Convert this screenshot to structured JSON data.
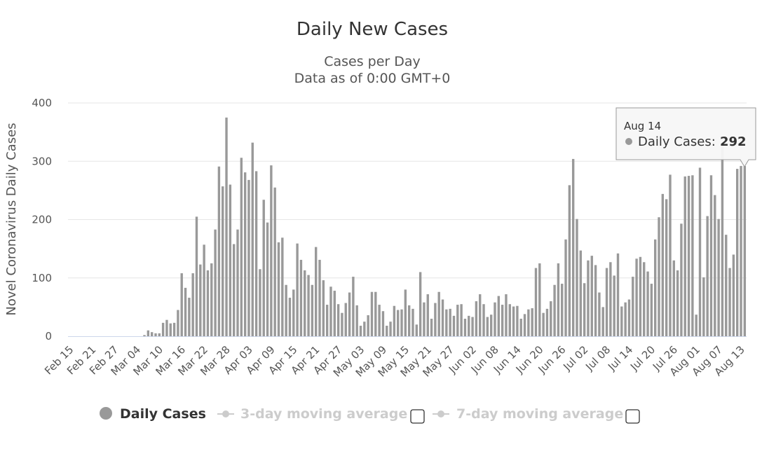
{
  "chart_data": {
    "type": "bar",
    "title": "Daily New Cases",
    "subtitle_line1": "Cases per Day",
    "subtitle_line2": "Data as of 0:00 GMT+0",
    "ylabel": "Novel Coronavirus Daily Cases",
    "xlabel": "",
    "ylim": [
      0,
      400
    ],
    "yticks": [
      "0",
      "100",
      "200",
      "300",
      "400"
    ],
    "grid": true,
    "start_date": "Feb 15",
    "x_ticks": [
      "Feb 15",
      "Feb 21",
      "Feb 27",
      "Mar 04",
      "Mar 10",
      "Mar 16",
      "Mar 22",
      "Mar 28",
      "Apr 03",
      "Apr 09",
      "Apr 15",
      "Apr 21",
      "Apr 27",
      "May 03",
      "May 09",
      "May 15",
      "May 21",
      "May 27",
      "Jun 02",
      "Jun 08",
      "Jun 14",
      "Jun 20",
      "Jun 26",
      "Jul 02",
      "Jul 08",
      "Jul 14",
      "Jul 20",
      "Jul 26",
      "Aug 01",
      "Aug 07",
      "Aug 13"
    ],
    "series": [
      {
        "name": "Daily Cases",
        "color": "#999999",
        "values": [
          0,
          0,
          0,
          0,
          0,
          0,
          0,
          0,
          0,
          0,
          0,
          0,
          0,
          0,
          0,
          0,
          0,
          0,
          0,
          0,
          2,
          10,
          7,
          5,
          5,
          23,
          28,
          22,
          23,
          45,
          108,
          83,
          66,
          108,
          205,
          123,
          157,
          113,
          125,
          183,
          291,
          257,
          375,
          260,
          158,
          183,
          306,
          281,
          268,
          332,
          283,
          115,
          234,
          195,
          293,
          255,
          161,
          169,
          88,
          66,
          80,
          159,
          131,
          113,
          105,
          88,
          153,
          131,
          96,
          54,
          85,
          78,
          55,
          40,
          57,
          75,
          102,
          53,
          18,
          25,
          36,
          76,
          76,
          54,
          43,
          18,
          25,
          52,
          45,
          46,
          80,
          53,
          47,
          20,
          110,
          58,
          72,
          30,
          57,
          76,
          63,
          46,
          47,
          35,
          54,
          55,
          30,
          35,
          33,
          60,
          72,
          55,
          33,
          37,
          58,
          69,
          54,
          72,
          55,
          51,
          52,
          30,
          38,
          46,
          48,
          117,
          125,
          40,
          47,
          60,
          88,
          125,
          90,
          166,
          259,
          304,
          201,
          147,
          91,
          130,
          138,
          122,
          75,
          50,
          117,
          127,
          104,
          142,
          51,
          58,
          63,
          102,
          133,
          136,
          127,
          111,
          90,
          166,
          204,
          244,
          235,
          277,
          130,
          113,
          193,
          274,
          275,
          276,
          37,
          289,
          101,
          206,
          276,
          242,
          201,
          332,
          174,
          117,
          140,
          287,
          292,
          292
        ]
      }
    ]
  },
  "legend": {
    "items": [
      {
        "label": "Daily Cases",
        "active": true,
        "color": "#999999"
      },
      {
        "label": "3-day moving average",
        "active": false,
        "color": "#cccccc"
      },
      {
        "label": "7-day moving average",
        "active": false,
        "color": "#cccccc"
      }
    ]
  },
  "tooltip": {
    "date": "Aug 14",
    "label": "Daily Cases:",
    "value": "292"
  }
}
